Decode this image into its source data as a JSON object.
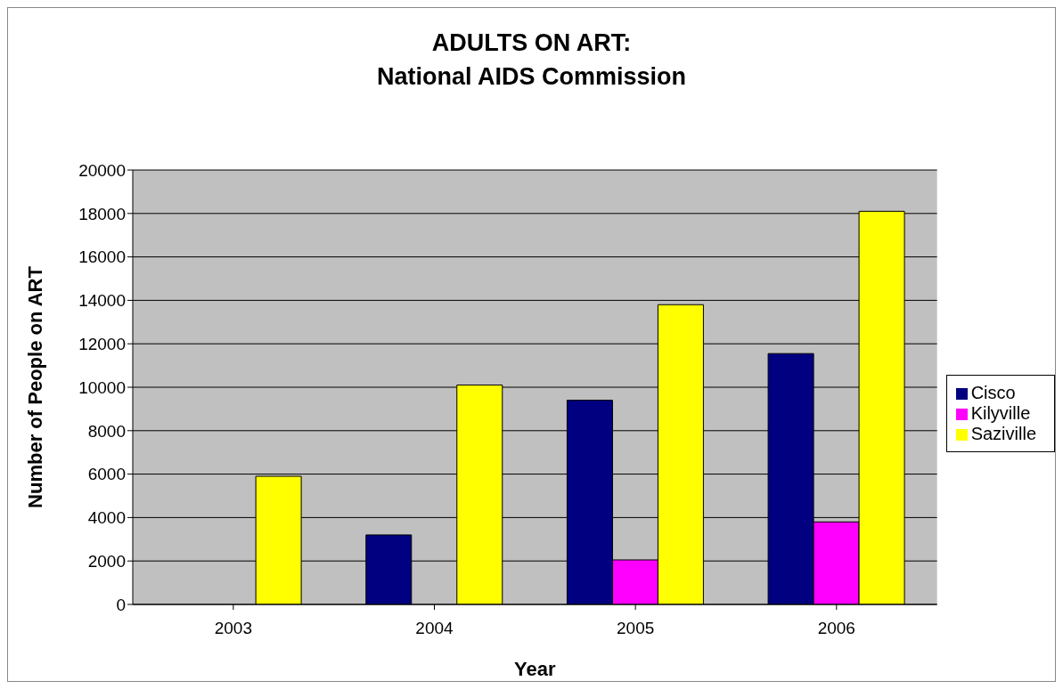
{
  "chart_data": {
    "type": "bar",
    "title": "ADULTS ON ART:\nNational AIDS Commission",
    "xlabel": "Year",
    "ylabel": "Number of People on ART",
    "categories": [
      "2003",
      "2004",
      "2005",
      "2006"
    ],
    "series": [
      {
        "name": "Cisco",
        "color": "#000080",
        "values": [
          null,
          3200,
          9400,
          11550
        ]
      },
      {
        "name": "Kilyville",
        "color": "#ff00ff",
        "values": [
          null,
          null,
          2050,
          3800
        ]
      },
      {
        "name": "Saziville",
        "color": "#ffff00",
        "values": [
          5900,
          10100,
          13800,
          18100
        ]
      }
    ],
    "ylim": [
      0,
      20000
    ],
    "yticks": [
      0,
      2000,
      4000,
      6000,
      8000,
      10000,
      12000,
      14000,
      16000,
      18000,
      20000
    ],
    "grid": "y",
    "legend": "right"
  }
}
